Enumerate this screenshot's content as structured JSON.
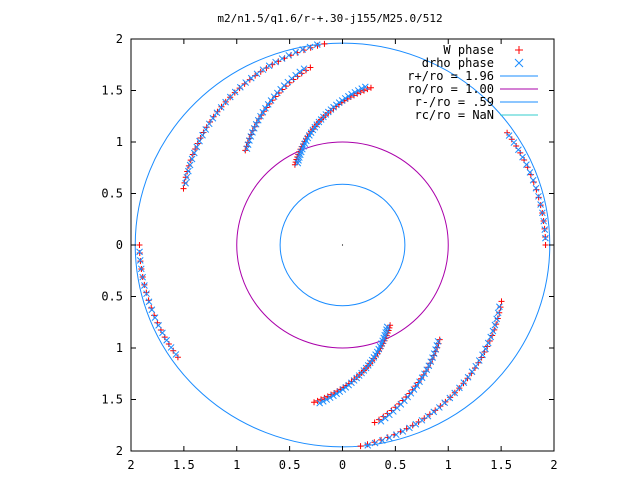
{
  "chart_data": {
    "type": "scatter",
    "title": "m2/n1.5/q1.6/r-+.30-j155/M25.0/512",
    "xlabel": "",
    "ylabel": "",
    "xlim": [
      -2,
      2
    ],
    "ylim": [
      -2,
      2
    ],
    "x_ticks": [
      "2",
      "1.5",
      "1",
      "0.5",
      "0",
      "0.5",
      "1",
      "1.5",
      "2"
    ],
    "y_ticks": [
      "2",
      "1.5",
      "1",
      "0.5",
      "0",
      "0.5",
      "1",
      "1.5",
      "2"
    ],
    "x_tick_values": [
      -2,
      -1.5,
      -1,
      -0.5,
      0,
      0.5,
      1,
      1.5,
      2
    ],
    "y_tick_values": [
      2,
      1.5,
      1,
      0.5,
      0,
      -0.5,
      -1,
      -1.5,
      -2
    ],
    "grid": false,
    "legend_position": "top-right",
    "series": [
      {
        "name": "W phase",
        "marker": "plus",
        "color": "#ff0000",
        "arms": [
          {
            "r0": 1.96,
            "r1": 1.6,
            "t0": 95,
            "t1": 160,
            "n": 34
          },
          {
            "r0": 1.75,
            "r1": 1.3,
            "t0": 100,
            "t1": 135,
            "n": 24
          },
          {
            "r0": 1.55,
            "r1": 0.9,
            "t0": 80,
            "t1": 120,
            "n": 36
          },
          {
            "r0": 1.92,
            "r1": 1.9,
            "t0": 180,
            "t1": 215,
            "n": 16
          },
          {
            "r0": 1.96,
            "r1": 1.6,
            "t0": 275,
            "t1": 340,
            "n": 34
          },
          {
            "r0": 1.75,
            "r1": 1.3,
            "t0": 280,
            "t1": 315,
            "n": 24
          },
          {
            "r0": 1.55,
            "r1": 0.9,
            "t0": 260,
            "t1": 300,
            "n": 36
          },
          {
            "r0": 1.92,
            "r1": 1.9,
            "t0": 0,
            "t1": 35,
            "n": 16
          }
        ]
      },
      {
        "name": "drho phase",
        "marker": "cross",
        "color": "#1a8cff",
        "arms": [
          {
            "r0": 1.96,
            "r1": 1.6,
            "t0": 97,
            "t1": 158,
            "n": 30
          },
          {
            "r0": 1.75,
            "r1": 1.3,
            "t0": 102,
            "t1": 134,
            "n": 22
          },
          {
            "r0": 1.55,
            "r1": 0.9,
            "t0": 82,
            "t1": 118,
            "n": 32
          },
          {
            "r0": 1.92,
            "r1": 1.9,
            "t0": 182,
            "t1": 214,
            "n": 14
          },
          {
            "r0": 1.96,
            "r1": 1.6,
            "t0": 277,
            "t1": 338,
            "n": 30
          },
          {
            "r0": 1.75,
            "r1": 1.3,
            "t0": 282,
            "t1": 314,
            "n": 22
          },
          {
            "r0": 1.55,
            "r1": 0.9,
            "t0": 262,
            "t1": 298,
            "n": 32
          },
          {
            "r0": 1.92,
            "r1": 1.9,
            "t0": 2,
            "t1": 34,
            "n": 14
          }
        ]
      },
      {
        "name": "r+/ro = 1.96",
        "marker": "line",
        "color": "#1a8cff",
        "circle_radius": 1.96
      },
      {
        "name": "ro/ro = 1.00",
        "marker": "line",
        "color": "#aa00aa",
        "circle_radius": 1.0
      },
      {
        "name": "r-/ro = .59",
        "marker": "line",
        "color": "#1a8cff",
        "circle_radius": 0.59
      },
      {
        "name": "rc/ro = NaN",
        "marker": "line",
        "color": "#33cccc",
        "circle_radius": null
      }
    ]
  }
}
